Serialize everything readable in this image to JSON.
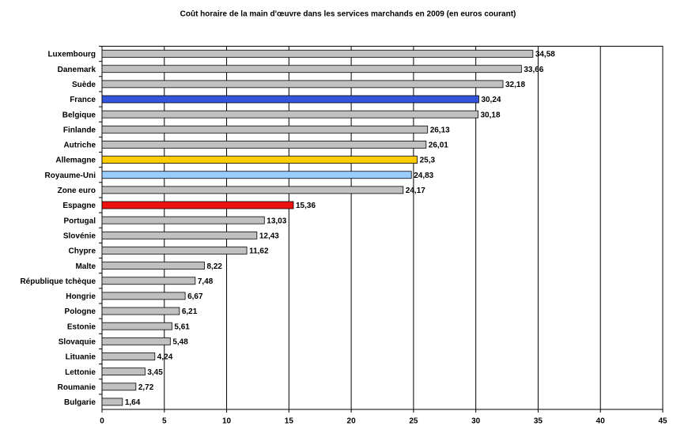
{
  "chart_data": {
    "type": "hbar",
    "title": "Coût horaire de la main d'œuvre dans les services marchands en 2009 (en euros courant)",
    "categories": [
      "Luxembourg",
      "Danemark",
      "Suède",
      "France",
      "Belgique",
      "Finlande",
      "Autriche",
      "Allemagne",
      "Royaume-Uni",
      "Zone euro",
      "Espagne",
      "Portugal",
      "Slovénie",
      "Chypre",
      "Malte",
      "République tchèque",
      "Hongrie",
      "Pologne",
      "Estonie",
      "Slovaquie",
      "Lituanie",
      "Lettonie",
      "Roumanie",
      "Bulgarie"
    ],
    "values": [
      34.58,
      33.66,
      32.18,
      30.24,
      30.18,
      26.13,
      26.01,
      25.3,
      24.83,
      24.17,
      15.36,
      13.03,
      12.43,
      11.62,
      8.22,
      7.48,
      6.67,
      6.21,
      5.61,
      5.48,
      4.24,
      3.45,
      2.72,
      1.64
    ],
    "value_labels": [
      "34,58",
      "33,66",
      "32,18",
      "30,24",
      "30,18",
      "26,13",
      "26,01",
      "25,3",
      "24,83",
      "24,17",
      "15,36",
      "13,03",
      "12,43",
      "11,62",
      "8,22",
      "7,48",
      "6,67",
      "6,21",
      "5,61",
      "5,48",
      "4,24",
      "3,45",
      "2,72",
      "1,64"
    ],
    "colors": [
      "#c0c0c0",
      "#c0c0c0",
      "#c0c0c0",
      "#3355dd",
      "#c0c0c0",
      "#c0c0c0",
      "#c0c0c0",
      "#ffcc00",
      "#99ccff",
      "#c0c0c0",
      "#ee1111",
      "#c0c0c0",
      "#c0c0c0",
      "#c0c0c0",
      "#c0c0c0",
      "#c0c0c0",
      "#c0c0c0",
      "#c0c0c0",
      "#c0c0c0",
      "#c0c0c0",
      "#c0c0c0",
      "#c0c0c0",
      "#c0c0c0",
      "#c0c0c0"
    ],
    "xlim": [
      0,
      45
    ],
    "xticks": [
      0,
      5,
      10,
      15,
      20,
      25,
      30,
      35,
      40,
      45
    ],
    "grid": true
  }
}
